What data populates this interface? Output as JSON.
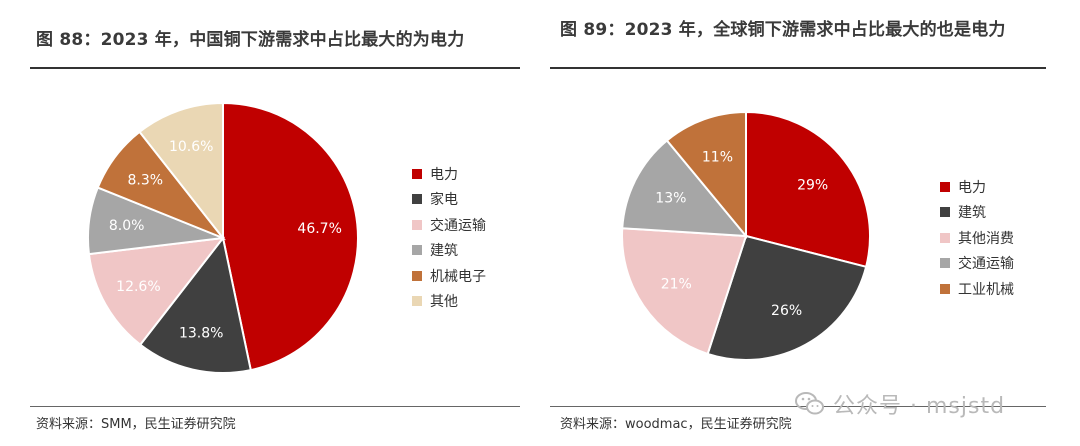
{
  "left": {
    "title": "图 88：2023 年，中国铜下游需求中占比最大的为电力",
    "source": "资料来源：SMM，民生证券研究院"
  },
  "right": {
    "title": "图 89：2023 年，全球铜下游需求中占比最大的也是电力",
    "source": "资料来源：woodmac，民生证券研究院"
  },
  "watermark": {
    "text": "公众号 · msjstd",
    "icon": "wechat-icon"
  },
  "chart_data": [
    {
      "type": "pie",
      "title": "图 88：2023 年，中国铜下游需求中占比最大的为电力",
      "categories": [
        "电力",
        "家电",
        "交通运输",
        "建筑",
        "机械电子",
        "其他"
      ],
      "values": [
        46.7,
        13.8,
        12.6,
        8.0,
        8.3,
        10.6
      ],
      "labels": [
        "46.7%",
        "13.8%",
        "12.6%",
        "8.0%",
        "8.3%",
        "10.6%"
      ],
      "colors": [
        "#c00000",
        "#404040",
        "#f0c6c6",
        "#a6a6a6",
        "#c0723a",
        "#ead7b4"
      ],
      "label_colors": [
        "#ffffff",
        "#ffffff",
        "#ffffff",
        "#ffffff",
        "#ffffff",
        "#ffffff"
      ],
      "legend_position": "right"
    },
    {
      "type": "pie",
      "title": "图 89：2023 年，全球铜下游需求中占比最大的也是电力",
      "categories": [
        "电力",
        "建筑",
        "其他消费",
        "交通运输",
        "工业机械"
      ],
      "values": [
        29,
        26,
        21,
        13,
        11
      ],
      "labels": [
        "29%",
        "26%",
        "21%",
        "13%",
        "11%"
      ],
      "colors": [
        "#c00000",
        "#404040",
        "#f0c6c6",
        "#a6a6a6",
        "#c0723a"
      ],
      "label_colors": [
        "#ffffff",
        "#ffffff",
        "#ffffff",
        "#ffffff",
        "#ffffff"
      ],
      "legend_series_order": [
        0,
        1,
        2,
        3,
        4
      ],
      "slice_order": [
        0,
        1,
        2,
        3,
        4
      ],
      "legend_position": "right"
    }
  ]
}
